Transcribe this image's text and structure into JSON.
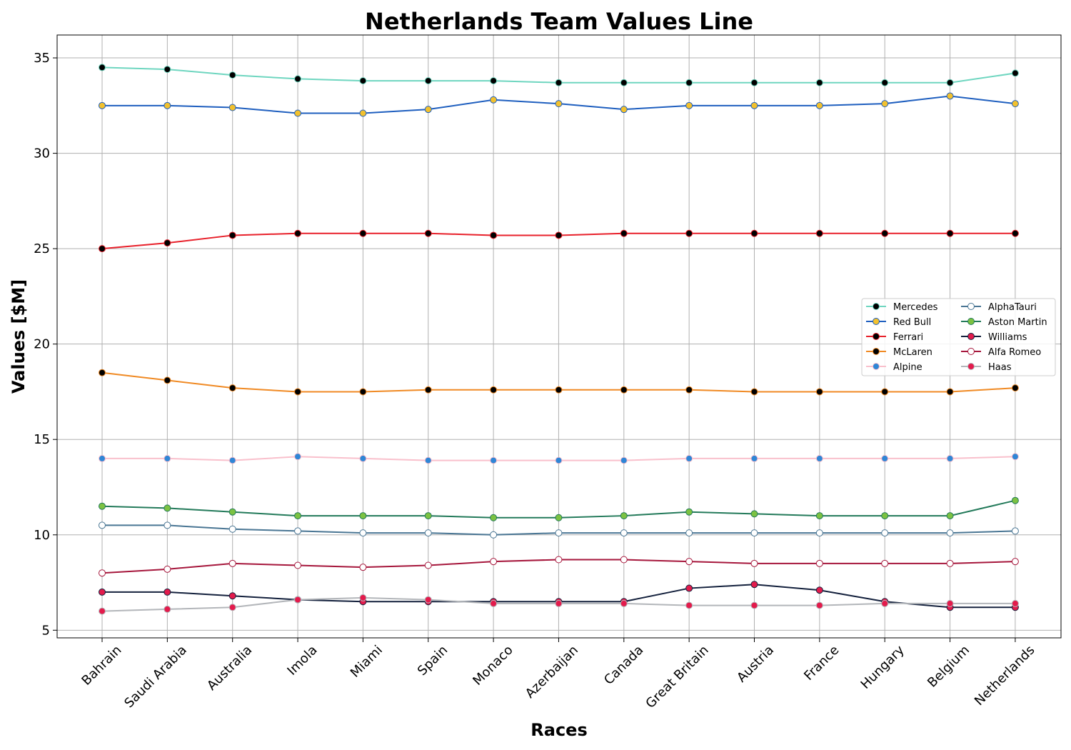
{
  "chart_data": {
    "type": "line",
    "title": "Netherlands Team Values Line",
    "xlabel": "Races",
    "ylabel": "Values [$M]",
    "ylim": [
      4.6,
      36.2
    ],
    "yticks": [
      5,
      10,
      15,
      20,
      25,
      30,
      35
    ],
    "grid": true,
    "legend_position": "center-right",
    "categories": [
      "Bahrain",
      "Saudi Arabia",
      "Australia",
      "Imola",
      "Miami",
      "Spain",
      "Monaco",
      "Azerbaijan",
      "Canada",
      "Great Britain",
      "Austria",
      "France",
      "Hungary",
      "Belgium",
      "Netherlands"
    ],
    "series": [
      {
        "name": "Mercedes",
        "line_color": "#6fd6c0",
        "marker_face": "#000000",
        "marker_edge": "#6fd6c0",
        "values": [
          34.5,
          34.4,
          34.1,
          33.9,
          33.8,
          33.8,
          33.8,
          33.7,
          33.7,
          33.7,
          33.7,
          33.7,
          33.7,
          33.7,
          34.2
        ]
      },
      {
        "name": "Red Bull",
        "line_color": "#1f5fbf",
        "marker_face": "#f2c12e",
        "marker_edge": "#1f5fbf",
        "values": [
          32.5,
          32.5,
          32.4,
          32.1,
          32.1,
          32.3,
          32.8,
          32.6,
          32.3,
          32.5,
          32.5,
          32.5,
          32.6,
          33.0,
          32.6
        ]
      },
      {
        "name": "Ferrari",
        "line_color": "#e8212b",
        "marker_face": "#000000",
        "marker_edge": "#e8212b",
        "values": [
          25.0,
          25.3,
          25.7,
          25.8,
          25.8,
          25.8,
          25.7,
          25.7,
          25.8,
          25.8,
          25.8,
          25.8,
          25.8,
          25.8,
          25.8
        ]
      },
      {
        "name": "McLaren",
        "line_color": "#f08a24",
        "marker_face": "#000000",
        "marker_edge": "#f08a24",
        "values": [
          18.5,
          18.1,
          17.7,
          17.5,
          17.5,
          17.6,
          17.6,
          17.6,
          17.6,
          17.6,
          17.5,
          17.5,
          17.5,
          17.5,
          17.7
        ]
      },
      {
        "name": "Alpine",
        "line_color": "#f9c0cc",
        "marker_face": "#2f86d6",
        "marker_edge": "#f9c0cc",
        "values": [
          14.0,
          14.0,
          13.9,
          14.1,
          14.0,
          13.9,
          13.9,
          13.9,
          13.9,
          14.0,
          14.0,
          14.0,
          14.0,
          14.0,
          14.1
        ]
      },
      {
        "name": "AlphaTauri",
        "line_color": "#4a7694",
        "marker_face": "#ffffff",
        "marker_edge": "#4a7694",
        "values": [
          10.5,
          10.5,
          10.3,
          10.2,
          10.1,
          10.1,
          10.0,
          10.1,
          10.1,
          10.1,
          10.1,
          10.1,
          10.1,
          10.1,
          10.2
        ]
      },
      {
        "name": "Aston Martin",
        "line_color": "#237a5a",
        "marker_face": "#7cc242",
        "marker_edge": "#237a5a",
        "values": [
          11.5,
          11.4,
          11.2,
          11.0,
          11.0,
          11.0,
          10.9,
          10.9,
          11.0,
          11.2,
          11.1,
          11.0,
          11.0,
          11.0,
          11.8
        ]
      },
      {
        "name": "Williams",
        "line_color": "#14213d",
        "marker_face": "#e31b4c",
        "marker_edge": "#14213d",
        "values": [
          7.0,
          7.0,
          6.8,
          6.6,
          6.5,
          6.5,
          6.5,
          6.5,
          6.5,
          7.2,
          7.4,
          7.1,
          6.5,
          6.2,
          6.2
        ]
      },
      {
        "name": "Alfa Romeo",
        "line_color": "#a6173c",
        "marker_face": "#ffffff",
        "marker_edge": "#a6173c",
        "values": [
          8.0,
          8.2,
          8.5,
          8.4,
          8.3,
          8.4,
          8.6,
          8.7,
          8.7,
          8.6,
          8.5,
          8.5,
          8.5,
          8.5,
          8.6
        ]
      },
      {
        "name": "Haas",
        "line_color": "#b3b6ba",
        "marker_face": "#e31b4c",
        "marker_edge": "#b3b6ba",
        "values": [
          6.0,
          6.1,
          6.2,
          6.6,
          6.7,
          6.6,
          6.4,
          6.4,
          6.4,
          6.3,
          6.3,
          6.3,
          6.4,
          6.4,
          6.4
        ]
      }
    ]
  }
}
